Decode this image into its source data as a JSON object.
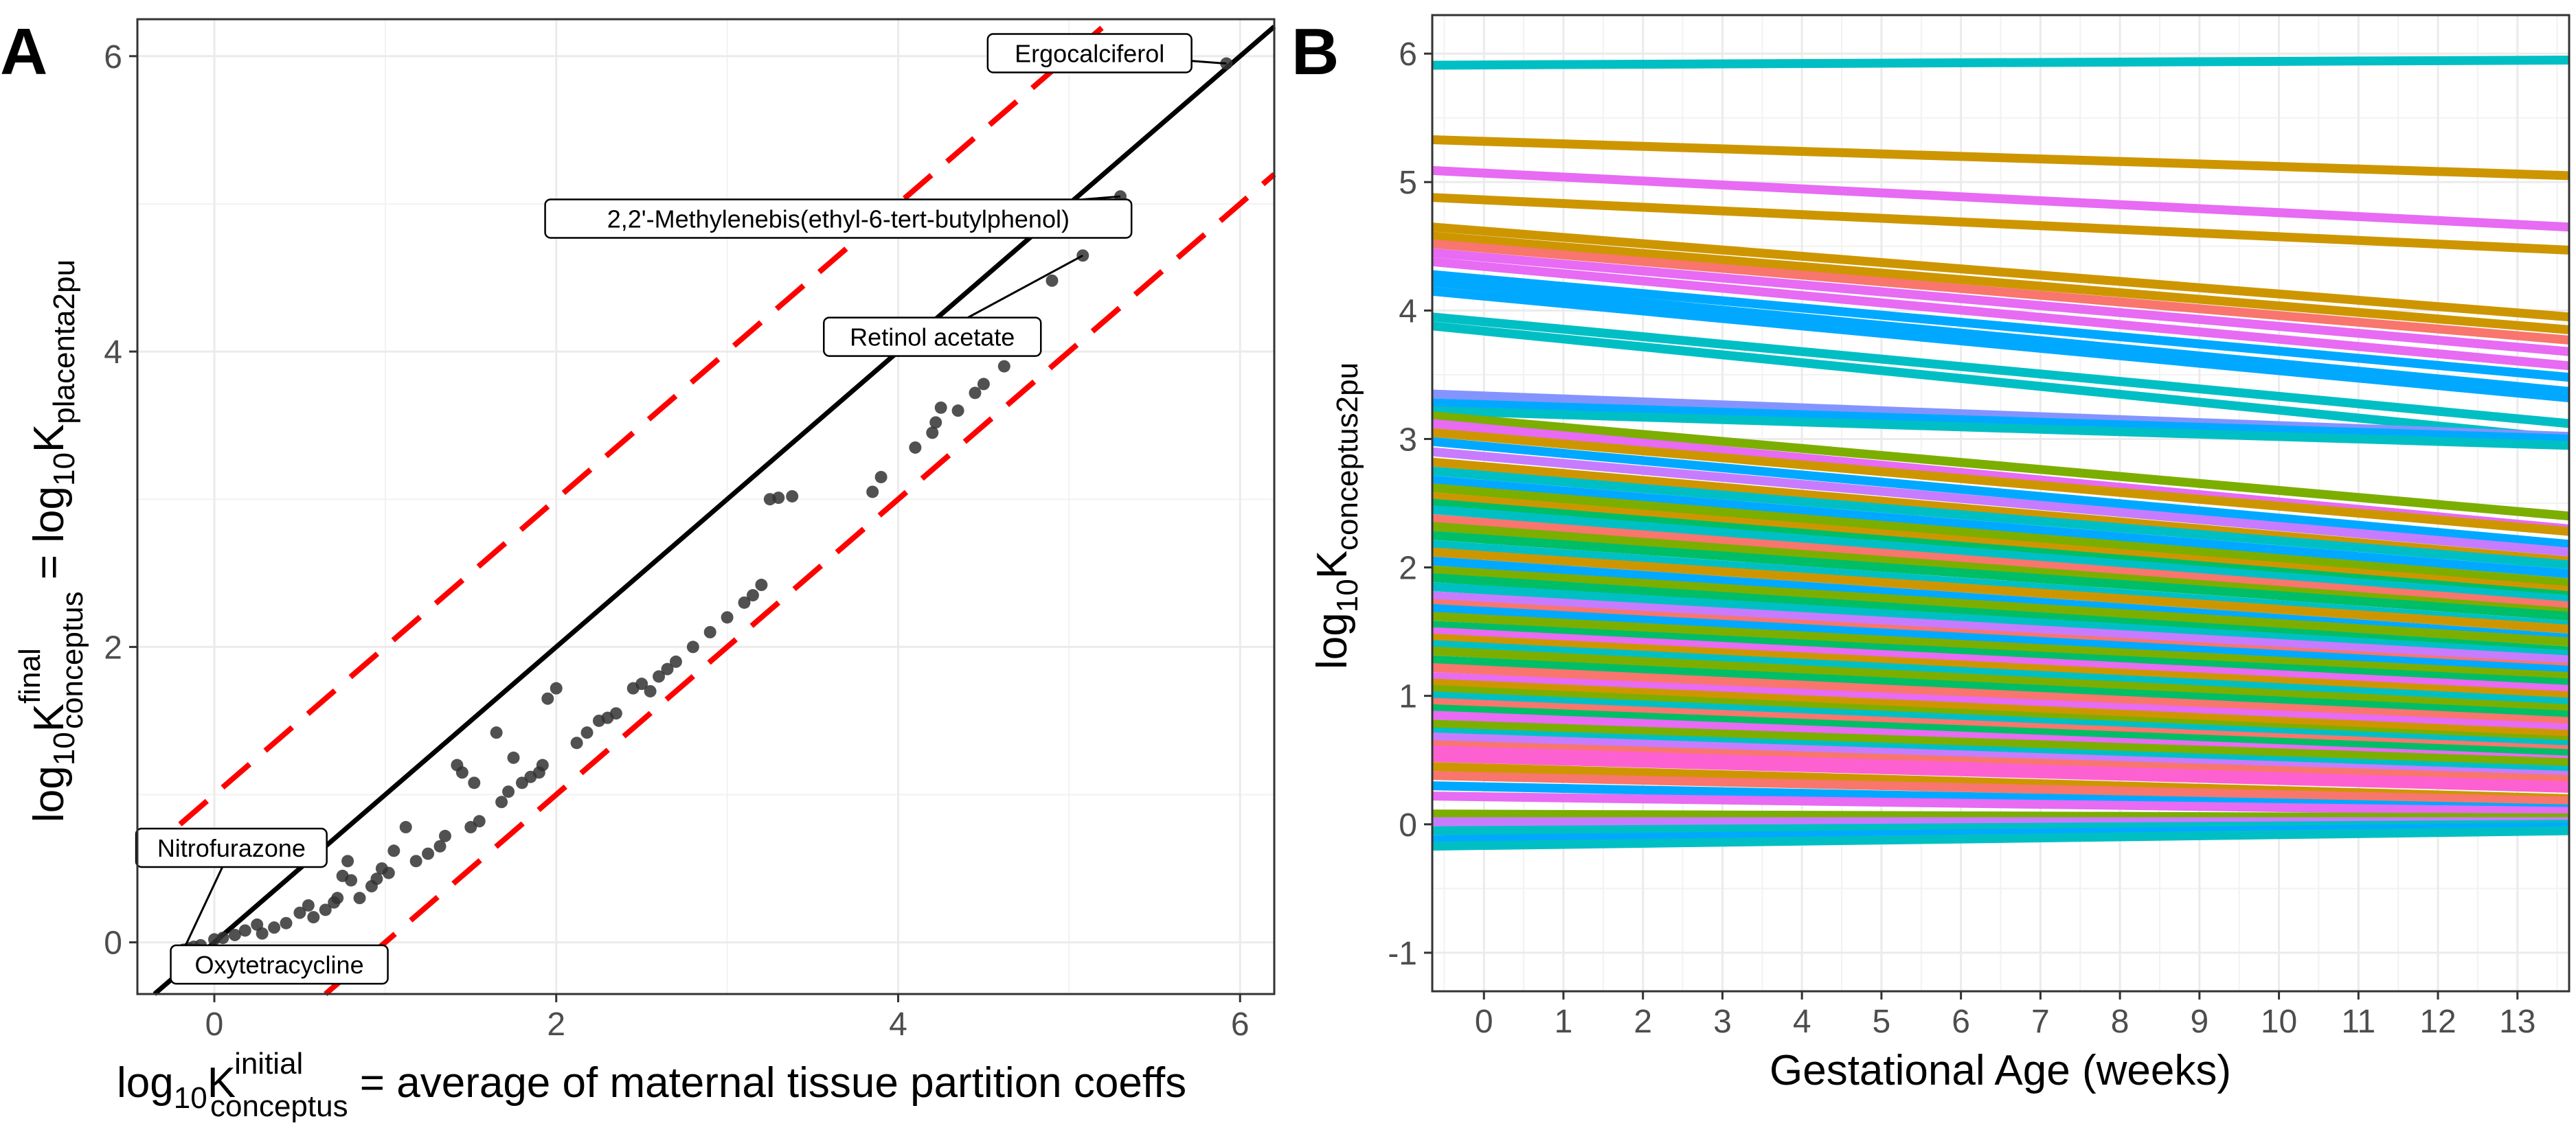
{
  "panels": {
    "a": {
      "letter": "A"
    },
    "b": {
      "letter": "B"
    }
  },
  "chart_data": [
    {
      "id": "A",
      "type": "scatter",
      "xlabel": {
        "base": "log",
        "sub1": "10",
        "main": "K",
        "sup": "initial",
        "sub2": "conceptus",
        "tail": " = average of maternal tissue partition coeffs"
      },
      "ylabel": {
        "base": "log",
        "sub1": "10",
        "main": "K",
        "sup": "final",
        "sub2": "conceptus",
        "mid": " = log",
        "sub3": "10",
        "main2": "K",
        "sub4": "placenta2pu"
      },
      "xlim": [
        -0.45,
        6.2
      ],
      "ylim": [
        -0.35,
        6.25
      ],
      "xticks": [
        0,
        2,
        4,
        6
      ],
      "yticks": [
        0,
        2,
        4,
        6
      ],
      "grid": true,
      "reference_lines": [
        {
          "type": "identity",
          "intercept": 0,
          "slope": 1,
          "style": "solid",
          "color": "#000000"
        },
        {
          "type": "upper",
          "intercept": 1,
          "slope": 1,
          "style": "dashed",
          "color": "#ff0000"
        },
        {
          "type": "lower",
          "intercept": -1,
          "slope": 1,
          "style": "dashed",
          "color": "#ff0000"
        }
      ],
      "point_color": "#333333",
      "points": [
        [
          -0.18,
          -0.05
        ],
        [
          -0.15,
          -0.04
        ],
        [
          -0.12,
          -0.03
        ],
        [
          -0.08,
          -0.02
        ],
        [
          0.0,
          0.02
        ],
        [
          0.05,
          0.03
        ],
        [
          0.12,
          0.05
        ],
        [
          0.18,
          0.08
        ],
        [
          0.25,
          0.12
        ],
        [
          0.28,
          0.06
        ],
        [
          0.35,
          0.1
        ],
        [
          0.42,
          0.13
        ],
        [
          0.5,
          0.2
        ],
        [
          0.55,
          0.25
        ],
        [
          0.58,
          0.17
        ],
        [
          0.65,
          0.22
        ],
        [
          0.7,
          0.27
        ],
        [
          0.72,
          0.3
        ],
        [
          0.75,
          0.45
        ],
        [
          0.78,
          0.55
        ],
        [
          0.8,
          0.42
        ],
        [
          0.85,
          0.3
        ],
        [
          0.92,
          0.38
        ],
        [
          0.95,
          0.43
        ],
        [
          0.98,
          0.5
        ],
        [
          1.02,
          0.47
        ],
        [
          1.05,
          0.62
        ],
        [
          1.12,
          0.78
        ],
        [
          1.18,
          0.55
        ],
        [
          1.25,
          0.6
        ],
        [
          1.32,
          0.65
        ],
        [
          1.35,
          0.72
        ],
        [
          1.42,
          1.2
        ],
        [
          1.45,
          1.15
        ],
        [
          1.5,
          0.78
        ],
        [
          1.52,
          1.08
        ],
        [
          1.55,
          0.82
        ],
        [
          1.65,
          1.42
        ],
        [
          1.68,
          0.95
        ],
        [
          1.72,
          1.02
        ],
        [
          1.75,
          1.25
        ],
        [
          1.8,
          1.08
        ],
        [
          1.85,
          1.12
        ],
        [
          1.9,
          1.15
        ],
        [
          1.92,
          1.2
        ],
        [
          1.95,
          1.65
        ],
        [
          2.0,
          1.72
        ],
        [
          2.12,
          1.35
        ],
        [
          2.18,
          1.42
        ],
        [
          2.25,
          1.5
        ],
        [
          2.3,
          1.52
        ],
        [
          2.35,
          1.55
        ],
        [
          2.45,
          1.72
        ],
        [
          2.5,
          1.75
        ],
        [
          2.55,
          1.7
        ],
        [
          2.6,
          1.8
        ],
        [
          2.65,
          1.85
        ],
        [
          2.7,
          1.9
        ],
        [
          2.8,
          2.0
        ],
        [
          2.9,
          2.1
        ],
        [
          3.0,
          2.2
        ],
        [
          3.1,
          2.3
        ],
        [
          3.15,
          2.35
        ],
        [
          3.2,
          2.42
        ],
        [
          3.25,
          3.0
        ],
        [
          3.3,
          3.01
        ],
        [
          3.38,
          3.02
        ],
        [
          3.85,
          3.05
        ],
        [
          3.9,
          3.15
        ],
        [
          4.1,
          3.35
        ],
        [
          4.2,
          3.45
        ],
        [
          4.22,
          3.52
        ],
        [
          4.25,
          3.62
        ],
        [
          4.35,
          3.6
        ],
        [
          4.45,
          3.72
        ],
        [
          4.5,
          3.78
        ],
        [
          4.62,
          3.9
        ],
        [
          4.9,
          4.48
        ],
        [
          5.08,
          4.65
        ],
        [
          5.3,
          5.05
        ],
        [
          5.92,
          5.95
        ]
      ],
      "annotations": [
        {
          "label": "Ergocalciferol",
          "x": 5.92,
          "y": 5.95,
          "lx": 5.12,
          "ly": 6.02
        },
        {
          "label": "2,2'-Methylenebis(ethyl-6-tert-butylphenol)",
          "x": 5.3,
          "y": 5.05,
          "lx": 3.65,
          "ly": 4.9
        },
        {
          "label": "Retinol acetate",
          "x": 5.08,
          "y": 4.65,
          "lx": 4.2,
          "ly": 4.1
        },
        {
          "label": "Nitrofurazone",
          "x": -0.18,
          "y": -0.05,
          "lx": 0.1,
          "ly": 0.64
        },
        {
          "label": "Oxytetracycline",
          "x": -0.08,
          "y": -0.02,
          "lx": 0.38,
          "ly": -0.15
        }
      ]
    },
    {
      "id": "B",
      "type": "line",
      "xlabel": "Gestational Age (weeks)",
      "ylabel": {
        "base": "log",
        "sub1": "10",
        "main": "K",
        "sub2": "conceptus2pu"
      },
      "xlim": [
        -0.65,
        13.65
      ],
      "ylim": [
        -1.3,
        6.3
      ],
      "xticks": [
        0,
        1,
        2,
        3,
        4,
        5,
        6,
        7,
        8,
        9,
        10,
        11,
        12,
        13
      ],
      "yticks": [
        -1,
        0,
        1,
        2,
        3,
        4,
        5,
        6
      ],
      "grid": true,
      "x_range": [
        -0.65,
        13.65
      ],
      "series": [
        {
          "color": "#00bfc4",
          "start": 5.91,
          "end": 5.95
        },
        {
          "color": "#cd9600",
          "start": 5.33,
          "end": 5.05
        },
        {
          "color": "#e76bf3",
          "start": 5.09,
          "end": 4.65
        },
        {
          "color": "#cd9600",
          "start": 4.88,
          "end": 4.47
        },
        {
          "color": "#cd9600",
          "start": 4.65,
          "end": 3.95
        },
        {
          "color": "#cd9600",
          "start": 4.58,
          "end": 3.85
        },
        {
          "color": "#f8766d",
          "start": 4.52,
          "end": 3.77
        },
        {
          "color": "#e76bf3",
          "start": 4.45,
          "end": 3.68
        },
        {
          "color": "#e76bf3",
          "start": 4.38,
          "end": 3.57
        },
        {
          "color": "#00a9ff",
          "start": 4.28,
          "end": 3.48
        },
        {
          "color": "#00a9ff",
          "start": 4.22,
          "end": 3.37
        },
        {
          "color": "#00a9ff",
          "start": 4.15,
          "end": 3.32
        },
        {
          "color": "#00bfc4",
          "start": 3.95,
          "end": 3.12
        },
        {
          "color": "#00bfc4",
          "start": 3.88,
          "end": 3.0
        },
        {
          "color": "#8494ff",
          "start": 3.35,
          "end": 3.02
        },
        {
          "color": "#00a9ff",
          "start": 3.28,
          "end": 3.0
        },
        {
          "color": "#00bfc4",
          "start": 3.22,
          "end": 2.95
        },
        {
          "color": "#7cae00",
          "start": 3.18,
          "end": 2.4
        },
        {
          "color": "#e76bf3",
          "start": 3.12,
          "end": 2.3
        },
        {
          "color": "#cd9600",
          "start": 3.05,
          "end": 2.28
        },
        {
          "color": "#00a9ff",
          "start": 2.98,
          "end": 2.18
        },
        {
          "color": "#c77cff",
          "start": 2.9,
          "end": 2.12
        },
        {
          "color": "#cd9600",
          "start": 2.82,
          "end": 2.05
        },
        {
          "color": "#00bfc4",
          "start": 2.75,
          "end": 2.02
        },
        {
          "color": "#00a9ff",
          "start": 2.68,
          "end": 1.95
        },
        {
          "color": "#7cae00",
          "start": 2.62,
          "end": 1.88
        },
        {
          "color": "#cd9600",
          "start": 2.55,
          "end": 1.82
        },
        {
          "color": "#00be67",
          "start": 2.5,
          "end": 1.78
        },
        {
          "color": "#00bfc4",
          "start": 2.45,
          "end": 1.75
        },
        {
          "color": "#f8766d",
          "start": 2.38,
          "end": 1.7
        },
        {
          "color": "#7cae00",
          "start": 2.32,
          "end": 1.65
        },
        {
          "color": "#00be67",
          "start": 2.25,
          "end": 1.62
        },
        {
          "color": "#00bfc4",
          "start": 2.18,
          "end": 1.55
        },
        {
          "color": "#cd9600",
          "start": 2.12,
          "end": 1.52
        },
        {
          "color": "#00a9ff",
          "start": 2.05,
          "end": 1.45
        },
        {
          "color": "#7cae00",
          "start": 1.98,
          "end": 1.42
        },
        {
          "color": "#00be67",
          "start": 1.92,
          "end": 1.35
        },
        {
          "color": "#00bfc4",
          "start": 1.85,
          "end": 1.32
        },
        {
          "color": "#c77cff",
          "start": 1.78,
          "end": 1.28
        },
        {
          "color": "#f8766d",
          "start": 1.72,
          "end": 1.22
        },
        {
          "color": "#00a9ff",
          "start": 1.68,
          "end": 1.2
        },
        {
          "color": "#7cae00",
          "start": 1.62,
          "end": 1.15
        },
        {
          "color": "#00be67",
          "start": 1.55,
          "end": 1.1
        },
        {
          "color": "#e76bf3",
          "start": 1.5,
          "end": 1.05
        },
        {
          "color": "#cd9600",
          "start": 1.45,
          "end": 1.0
        },
        {
          "color": "#00bfc4",
          "start": 1.4,
          "end": 0.95
        },
        {
          "color": "#7cae00",
          "start": 1.35,
          "end": 0.9
        },
        {
          "color": "#00be67",
          "start": 1.28,
          "end": 0.85
        },
        {
          "color": "#f8766d",
          "start": 1.22,
          "end": 0.8
        },
        {
          "color": "#e76bf3",
          "start": 1.15,
          "end": 0.75
        },
        {
          "color": "#cd9600",
          "start": 1.1,
          "end": 0.7
        },
        {
          "color": "#7cae00",
          "start": 1.05,
          "end": 0.65
        },
        {
          "color": "#00bfc4",
          "start": 1.0,
          "end": 0.62
        },
        {
          "color": "#f8766d",
          "start": 0.95,
          "end": 0.58
        },
        {
          "color": "#00be67",
          "start": 0.9,
          "end": 0.55
        },
        {
          "color": "#e76bf3",
          "start": 0.85,
          "end": 0.5
        },
        {
          "color": "#7cae00",
          "start": 0.78,
          "end": 0.48
        },
        {
          "color": "#00bfc4",
          "start": 0.72,
          "end": 0.42
        },
        {
          "color": "#c77cff",
          "start": 0.68,
          "end": 0.38
        },
        {
          "color": "#f8766d",
          "start": 0.62,
          "end": 0.35
        },
        {
          "color": "#fd61d1",
          "start": 0.58,
          "end": 0.3
        },
        {
          "color": "#fd61d1",
          "start": 0.52,
          "end": 0.28
        },
        {
          "color": "#cd9600",
          "start": 0.45,
          "end": 0.2
        },
        {
          "color": "#f8766d",
          "start": 0.38,
          "end": 0.18
        },
        {
          "color": "#00a9ff",
          "start": 0.3,
          "end": 0.12
        },
        {
          "color": "#e76bf3",
          "start": 0.22,
          "end": 0.1
        },
        {
          "color": "#7cae00",
          "start": 0.08,
          "end": 0.05
        },
        {
          "color": "#c77cff",
          "start": 0.02,
          "end": 0.02
        },
        {
          "color": "#00bfc4",
          "start": -0.05,
          "end": 0.0
        },
        {
          "color": "#00a9ff",
          "start": -0.12,
          "end": -0.02
        },
        {
          "color": "#00bfc4",
          "start": -0.17,
          "end": -0.05
        }
      ]
    }
  ]
}
